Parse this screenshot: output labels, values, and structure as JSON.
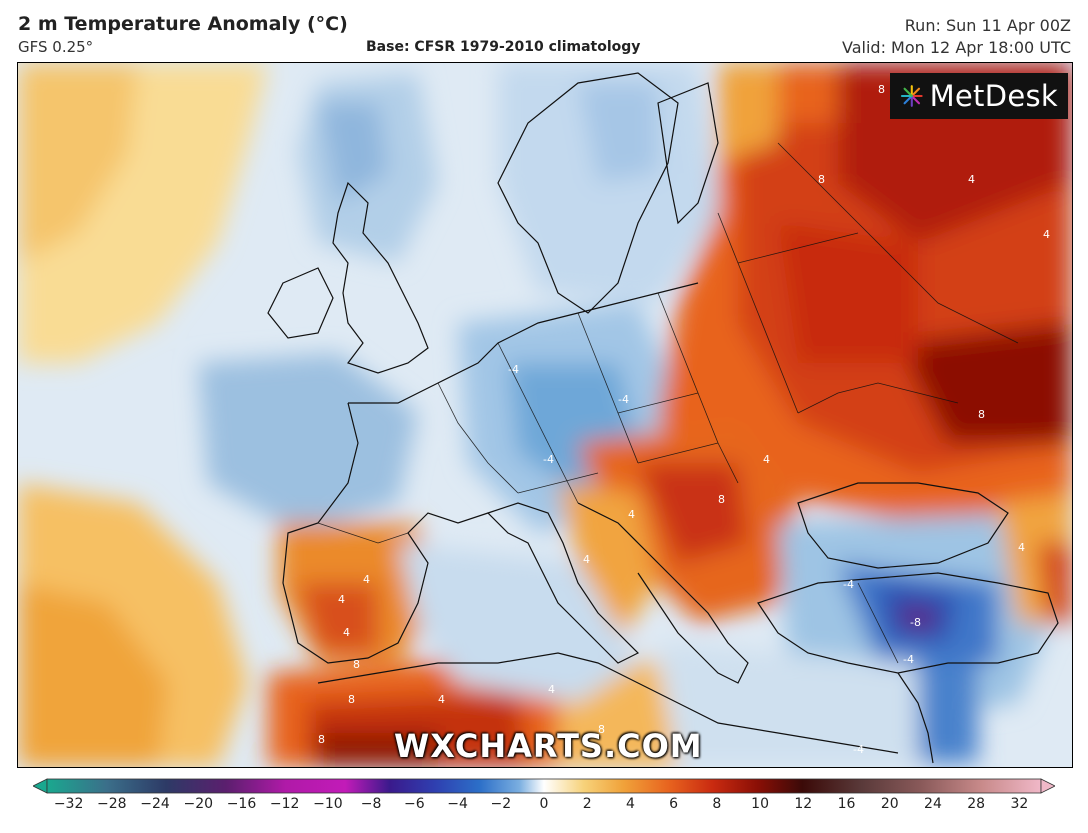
{
  "header": {
    "title": "2 m Temperature Anomaly (°C)",
    "model": "GFS 0.25°",
    "base": "Base: CFSR 1979-2010 climatology",
    "run": "Run: Sun 11 Apr 00Z",
    "valid": "Valid: Mon 12 Apr 18:00 UTC"
  },
  "brand": {
    "name": "MetDesk",
    "logo_icon": "metdesk-sunburst-icon"
  },
  "watermark": "WXCHARTS.COM",
  "colorbar": {
    "min": -32,
    "max": 32,
    "ticks": [
      "−32",
      "−28",
      "−24",
      "−20",
      "−16",
      "−12",
      "−10",
      "−8",
      "−6",
      "−4",
      "−2",
      "0",
      "2",
      "4",
      "6",
      "8",
      "10",
      "12",
      "16",
      "20",
      "24",
      "28",
      "32"
    ],
    "colors": [
      "#1aa88f",
      "#3b6f8a",
      "#2d3a66",
      "#5b1f6e",
      "#9c1aa8",
      "#c21bb8",
      "#3a1a8c",
      "#2f3fb0",
      "#2c6fc8",
      "#5a9ad6",
      "#a9c9e6",
      "#ffffff",
      "#f7d27a",
      "#f0a23a",
      "#e8641f",
      "#c92a10",
      "#8a0f06",
      "#5b0a08",
      "#3b1a1a",
      "#7a4a4a",
      "#a05a5a",
      "#c88a8a",
      "#e8a8b8"
    ]
  },
  "map_labels": [
    {
      "text": "4",
      "kind": "warm"
    },
    {
      "text": "8",
      "kind": "warm"
    },
    {
      "text": "-4",
      "kind": "cold"
    },
    {
      "text": "-8",
      "kind": "cold"
    }
  ]
}
